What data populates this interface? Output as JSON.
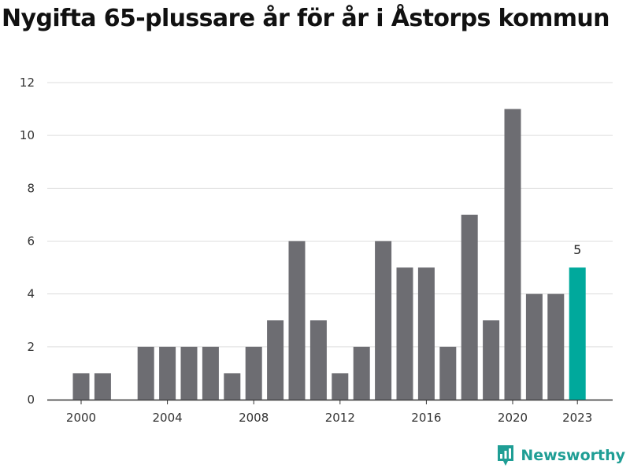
{
  "chart_data": {
    "type": "bar",
    "title": "Nygifta 65-plussare år för år i Åstorps kommun",
    "xlabel": "",
    "ylabel": "",
    "x": [
      2000,
      2001,
      2002,
      2003,
      2004,
      2005,
      2006,
      2007,
      2008,
      2009,
      2010,
      2011,
      2012,
      2013,
      2014,
      2015,
      2016,
      2017,
      2018,
      2019,
      2020,
      2021,
      2022,
      2023
    ],
    "values": [
      1,
      1,
      0,
      2,
      2,
      2,
      2,
      1,
      2,
      3,
      6,
      3,
      1,
      2,
      6,
      5,
      5,
      2,
      7,
      3,
      11,
      4,
      4,
      5
    ],
    "ylim": [
      0,
      12
    ],
    "yticks": [
      0,
      2,
      4,
      6,
      8,
      10,
      12
    ],
    "xticks": [
      "2000",
      "2004",
      "2008",
      "2012",
      "2016",
      "2020",
      "2023"
    ],
    "highlight": {
      "year": 2023,
      "label": "5"
    },
    "grid": true,
    "colors": {
      "bar": "#6d6d72",
      "highlight": "#00a99c",
      "grid": "#dddddd",
      "axis": "#333333"
    }
  },
  "brand": {
    "name": "Newsworthy",
    "icon": "newsworthy-logo-icon",
    "color": "#1f9e95"
  }
}
